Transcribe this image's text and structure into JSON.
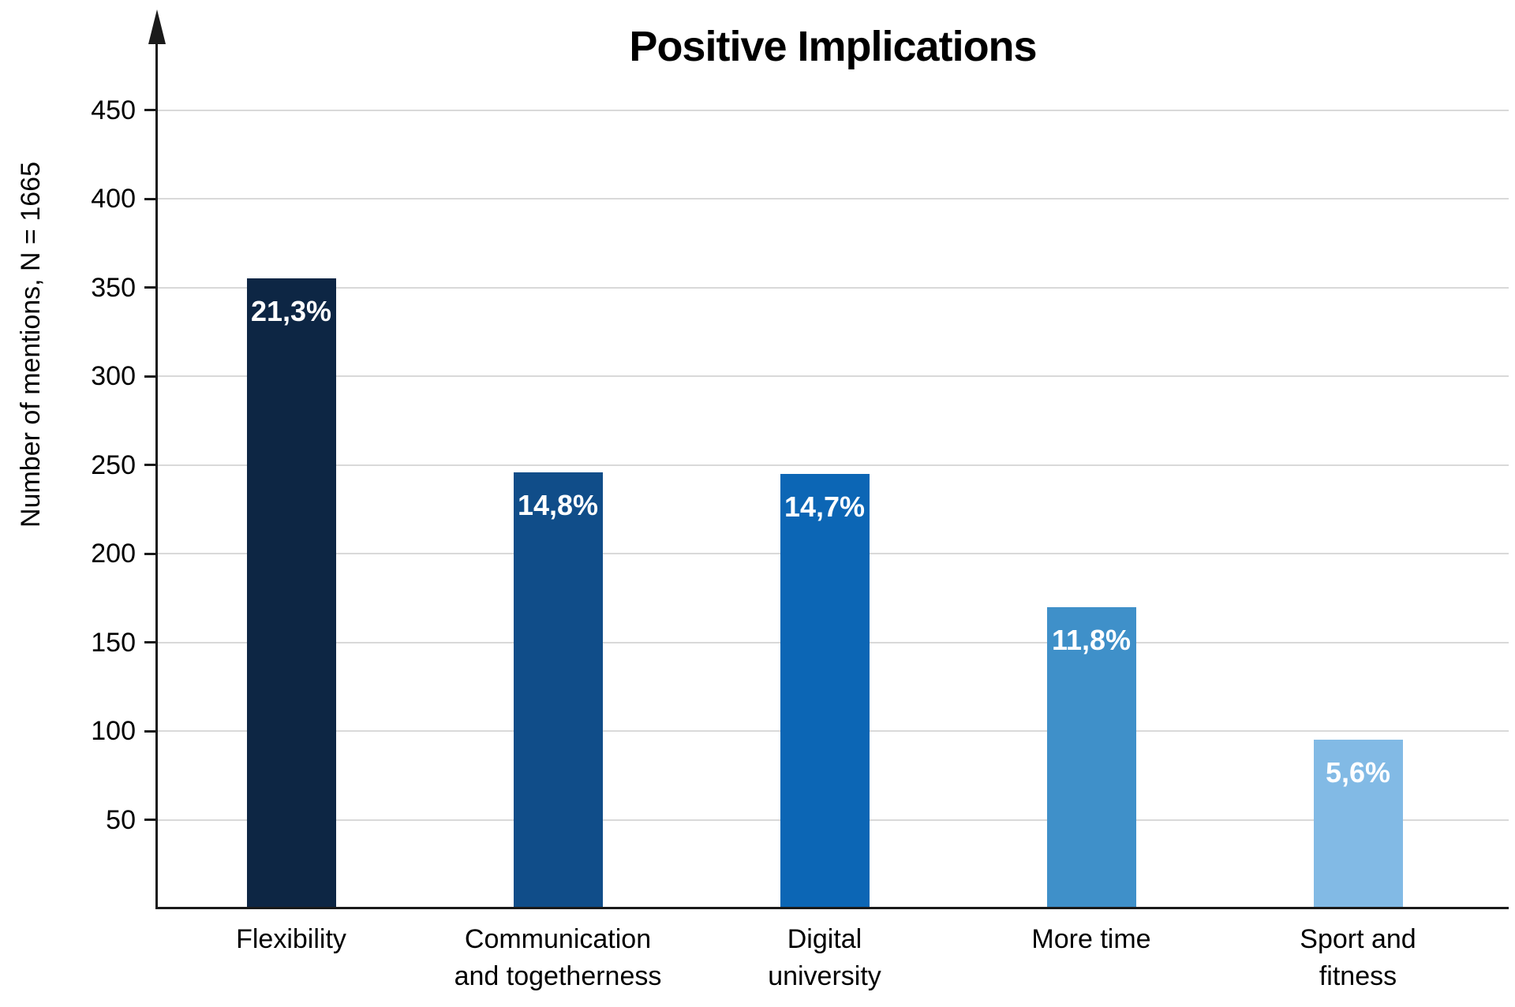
{
  "chart_data": {
    "type": "bar",
    "title": "Positive Implications",
    "ylabel": "Number of mentions, N = 1665",
    "xlabel": "",
    "categories": [
      "Flexibility",
      "Communication\nand togetherness",
      "Digital\nuniversity",
      "More time",
      "Sport and\nfitness"
    ],
    "values": [
      355,
      246,
      245,
      170,
      95
    ],
    "bar_labels": [
      "21,3%",
      "14,8%",
      "14,7%",
      "11,8%",
      "5,6%"
    ],
    "bar_colors": [
      "#0d2644",
      "#104d89",
      "#0c66b5",
      "#3f90c9",
      "#82bae5"
    ],
    "bar_label_color": "#ffffff",
    "ylim": [
      0,
      480
    ],
    "yticks": [
      50,
      100,
      150,
      200,
      250,
      300,
      350,
      400,
      450
    ],
    "grid": "horizontal",
    "gridline_color": "#d9d9d9",
    "axis_color": "#1a1a1a",
    "legend": "none"
  }
}
